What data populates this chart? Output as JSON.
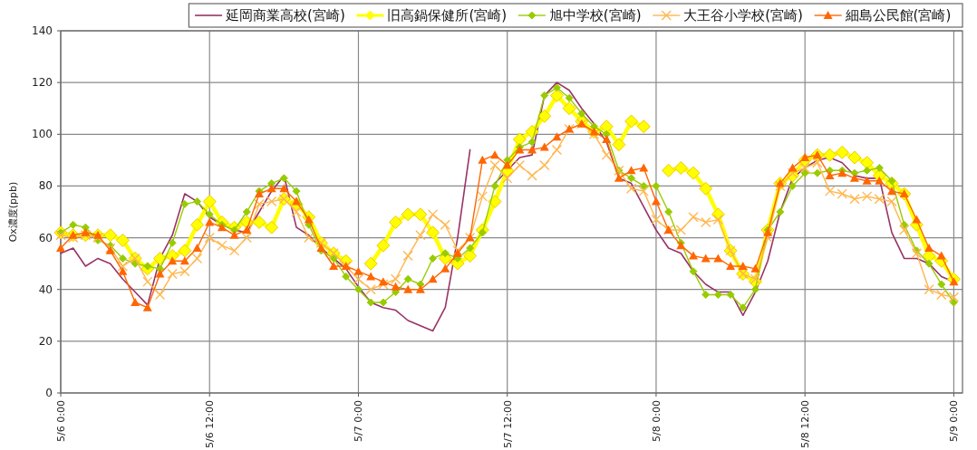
{
  "chart_data": {
    "type": "line",
    "ylabel": "Ox濃度(ppb)",
    "grid": true,
    "legend": "top",
    "categories": [
      "5/6 0:00",
      null,
      null,
      null,
      null,
      null,
      null,
      null,
      null,
      null,
      null,
      null,
      "5/6 12:00",
      null,
      null,
      null,
      null,
      null,
      null,
      null,
      null,
      null,
      null,
      null,
      "5/7 0:00",
      null,
      null,
      null,
      null,
      null,
      null,
      null,
      null,
      null,
      null,
      null,
      "5/7 12:00",
      null,
      null,
      null,
      null,
      null,
      null,
      null,
      null,
      null,
      null,
      null,
      "5/8 0:00",
      null,
      null,
      null,
      null,
      null,
      null,
      null,
      null,
      null,
      null,
      null,
      "5/8 12:00",
      null,
      null,
      null,
      null,
      null,
      null,
      null,
      null,
      null,
      null,
      null,
      "5/9 0:00"
    ],
    "ylim": [
      0,
      140
    ],
    "yticks": [
      0,
      20,
      40,
      60,
      80,
      100,
      120,
      140
    ],
    "series": [
      {
        "name": "延岡商業高校(宮崎)",
        "color": "#993366",
        "marker": "none",
        "values": [
          54,
          56,
          49,
          52,
          50,
          44,
          39,
          34,
          52,
          61,
          77,
          74,
          68,
          65,
          63,
          62,
          70,
          78,
          84,
          64,
          61,
          56,
          52,
          48,
          41,
          35,
          33,
          32,
          28,
          26,
          24,
          33,
          60,
          94,
          null,
          81,
          86,
          91,
          92,
          115,
          120,
          117,
          110,
          104,
          97,
          83,
          81,
          72,
          63,
          56,
          54,
          47,
          42,
          39,
          39,
          30,
          39,
          51,
          70,
          83,
          87,
          90,
          91,
          89,
          84,
          83,
          83,
          62,
          52,
          52,
          50,
          45,
          43
        ]
      },
      {
        "name": "旧高鍋保健所(宮崎)",
        "color": "#ffff00",
        "marker": "diamond",
        "values": [
          62,
          61,
          61,
          61,
          61,
          59,
          52,
          48,
          52,
          53,
          55,
          65,
          74,
          66,
          64,
          66,
          66,
          64,
          75,
          73,
          68,
          58,
          54,
          51,
          null,
          50,
          57,
          66,
          69,
          69,
          62,
          52,
          50,
          53,
          63,
          74,
          86,
          98,
          101,
          107,
          115,
          110,
          105,
          101,
          103,
          96,
          105,
          103,
          null,
          86,
          87,
          85,
          79,
          69,
          55,
          46,
          43,
          63,
          81,
          84,
          90,
          92,
          92,
          93,
          91,
          89,
          84,
          81,
          77,
          65,
          53,
          51,
          44
        ]
      },
      {
        "name": "旭中学校(宮崎)",
        "color": "#99cc00",
        "marker": "diamond",
        "values": [
          62,
          65,
          64,
          59,
          57,
          52,
          50,
          49,
          48,
          58,
          73,
          74,
          69,
          65,
          63,
          70,
          78,
          81,
          83,
          78,
          65,
          55,
          52,
          45,
          40,
          35,
          35,
          39,
          44,
          42,
          52,
          54,
          52,
          56,
          62,
          80,
          90,
          95,
          97,
          115,
          118,
          114,
          108,
          103,
          100,
          86,
          83,
          80,
          80,
          70,
          58,
          47,
          38,
          38,
          38,
          33,
          40,
          63,
          70,
          80,
          85,
          85,
          86,
          86,
          85,
          86,
          87,
          82,
          65,
          55,
          50,
          42,
          35
        ]
      },
      {
        "name": "大王谷小学校(宮崎)",
        "color": "#ffb64d",
        "marker": "cross",
        "values": [
          61,
          60,
          61,
          60,
          56,
          49,
          52,
          43,
          38,
          46,
          47,
          52,
          60,
          57,
          55,
          60,
          73,
          74,
          75,
          70,
          60,
          58,
          54,
          49,
          44,
          40,
          42,
          44,
          53,
          61,
          69,
          65,
          55,
          60,
          76,
          88,
          83,
          88,
          84,
          88,
          94,
          102,
          104,
          100,
          92,
          86,
          79,
          78,
          67,
          63,
          63,
          68,
          66,
          67,
          55,
          46,
          44,
          60,
          80,
          85,
          87,
          89,
          78,
          77,
          75,
          76,
          75,
          74,
          63,
          54,
          40,
          38,
          37
        ]
      },
      {
        "name": "細島公民館(宮崎)",
        "color": "#ff6600",
        "marker": "triangle",
        "values": [
          56,
          61,
          62,
          61,
          55,
          47,
          35,
          33,
          46,
          51,
          51,
          56,
          66,
          64,
          61,
          63,
          77,
          79,
          79,
          74,
          67,
          56,
          49,
          49,
          47,
          45,
          43,
          41,
          40,
          40,
          44,
          48,
          54,
          60,
          90,
          92,
          88,
          94,
          94,
          95,
          99,
          102,
          104,
          101,
          98,
          83,
          86,
          87,
          74,
          63,
          57,
          53,
          52,
          52,
          49,
          49,
          48,
          62,
          81,
          87,
          91,
          92,
          84,
          85,
          83,
          82,
          82,
          78,
          77,
          67,
          56,
          53,
          43
        ]
      }
    ]
  }
}
